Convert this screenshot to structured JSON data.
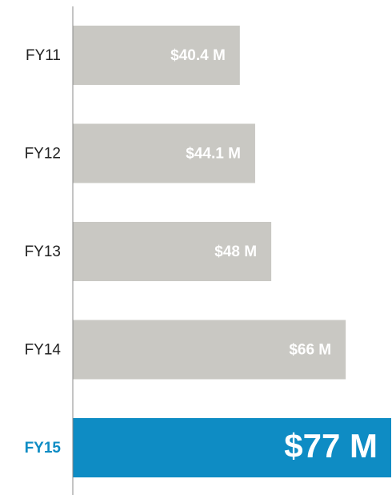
{
  "chart_data": {
    "type": "bar",
    "orientation": "horizontal",
    "categories": [
      "FY11",
      "FY12",
      "FY13",
      "FY14",
      "FY15"
    ],
    "values": [
      40.4,
      44.1,
      48,
      66,
      77
    ],
    "value_labels": [
      "$40.4 M",
      "$44.1 M",
      "$48 M",
      "$66 M",
      "$77 M"
    ],
    "colors": [
      "#c9c8c3",
      "#c9c8c3",
      "#c9c8c3",
      "#c9c8c3",
      "#0e8cc4"
    ],
    "xlim": [
      0,
      77
    ]
  }
}
